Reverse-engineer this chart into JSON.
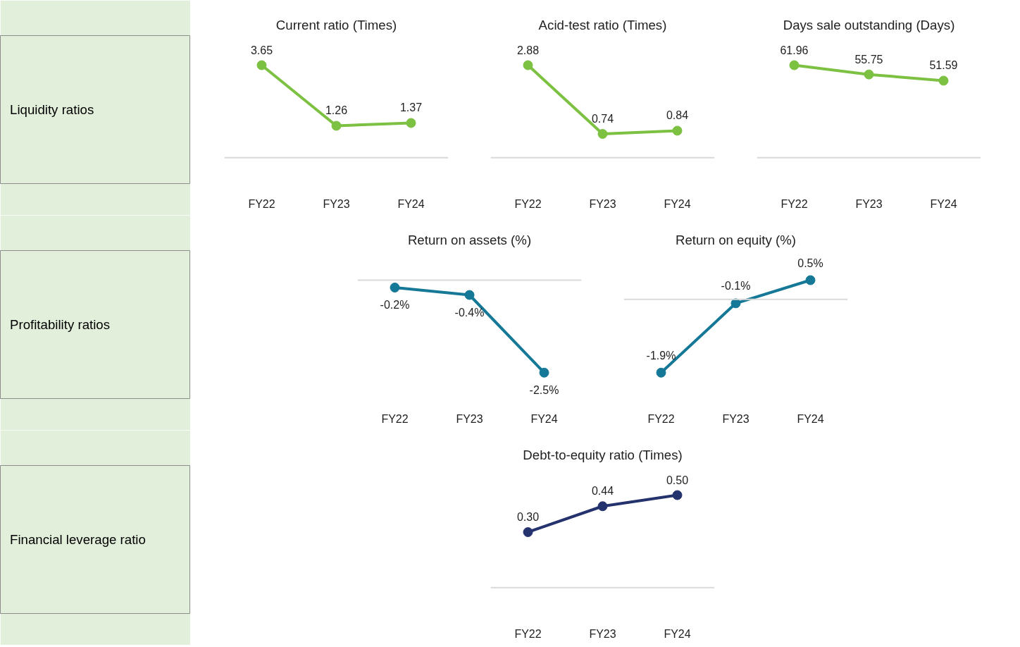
{
  "chart_data": [
    {
      "type": "other",
      "title": "Liquidity ratios"
    },
    {
      "type": "line",
      "title": "Current ratio (Times)",
      "categories": [
        "FY22",
        "FY23",
        "FY24"
      ],
      "marker": "circle",
      "ref_lines": [
        {
          "axis": "y",
          "value": 0,
          "color": "#d9d9d9"
        }
      ],
      "series": [
        {
          "color": "#7dc142",
          "values": [
            3.65,
            1.26,
            1.37
          ],
          "value_labels": [
            "3.65",
            "1.26",
            "1.37"
          ]
        }
      ]
    },
    {
      "type": "line",
      "title": "Acid-test ratio (Times)",
      "categories": [
        "FY22",
        "FY23",
        "FY24"
      ],
      "marker": "circle",
      "ref_lines": [
        {
          "axis": "y",
          "value": 0,
          "color": "#d9d9d9"
        }
      ],
      "series": [
        {
          "color": "#7dc142",
          "values": [
            2.88,
            0.74,
            0.84
          ],
          "value_labels": [
            "2.88",
            "0.74",
            "0.84"
          ]
        }
      ]
    },
    {
      "type": "line",
      "title": "Days sale outstanding (Days)",
      "categories": [
        "FY22",
        "FY23",
        "FY24"
      ],
      "marker": "circle",
      "ref_lines": [
        {
          "axis": "y",
          "value": 0,
          "color": "#d9d9d9"
        }
      ],
      "series": [
        {
          "color": "#7dc142",
          "values": [
            61.96,
            55.75,
            51.59
          ],
          "value_labels": [
            "61.96",
            "55.75",
            "51.59"
          ]
        }
      ]
    },
    {
      "type": "other",
      "title": "Profitability ratios"
    },
    {
      "type": "line",
      "title": "Return on assets (%)",
      "categories": [
        "FY22",
        "FY23",
        "FY24"
      ],
      "marker": "circle",
      "ref_lines": [
        {
          "axis": "y",
          "value": 0,
          "color": "#d9d9d9"
        }
      ],
      "series": [
        {
          "color": "#147896",
          "values": [
            -0.2,
            -0.4,
            -2.5
          ],
          "value_labels": [
            "-0.2%",
            "-0.4%",
            "-2.5%"
          ]
        }
      ]
    },
    {
      "type": "line",
      "title": "Return on equity (%)",
      "categories": [
        "FY22",
        "FY23",
        "FY24"
      ],
      "marker": "circle",
      "ref_lines": [
        {
          "axis": "y",
          "value": 0,
          "color": "#d9d9d9"
        }
      ],
      "series": [
        {
          "color": "#147896",
          "values": [
            -1.9,
            -0.1,
            0.5
          ],
          "value_labels": [
            "-1.9%",
            "-0.1%",
            "0.5%"
          ]
        }
      ]
    },
    {
      "type": "other",
      "title": "Financial leverage ratio"
    },
    {
      "type": "line",
      "title": "Debt-to-equity ratio (Times)",
      "categories": [
        "FY22",
        "FY23",
        "FY24"
      ],
      "marker": "circle",
      "ref_lines": [
        {
          "axis": "y",
          "value": 0,
          "color": "#d9d9d9"
        }
      ],
      "series": [
        {
          "color": "#24326e",
          "values": [
            0.3,
            0.44,
            0.5
          ],
          "value_labels": [
            "0.30",
            "0.44",
            "0.50"
          ]
        }
      ]
    }
  ]
}
